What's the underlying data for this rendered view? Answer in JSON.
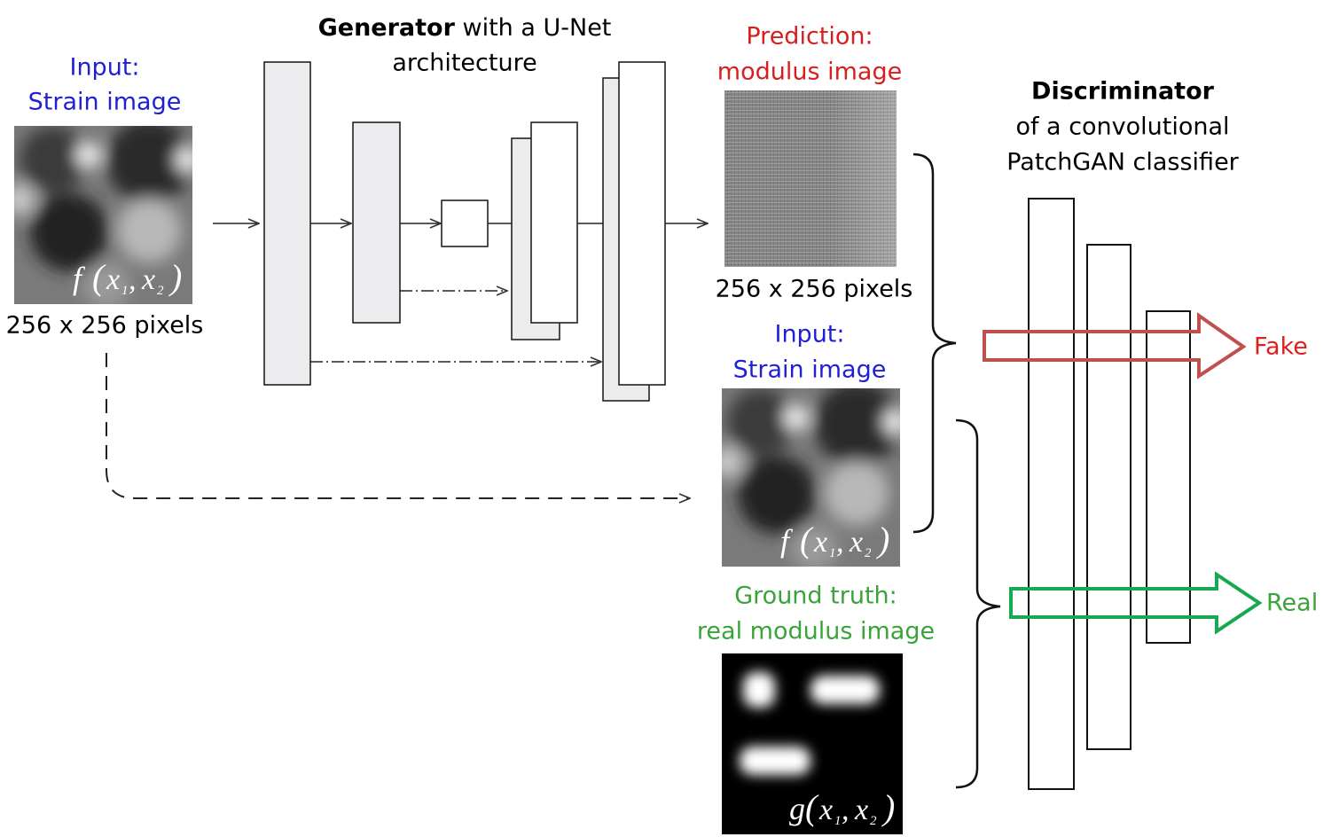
{
  "colors": {
    "input_label": "#1f1fd6",
    "prediction_label": "#d81f1f",
    "ground_truth_label": "#3aa33a",
    "fake_arrow": "#c0504d",
    "real_arrow": "#18a850",
    "fake_label": "#e0201e",
    "real_label": "#3aa33a",
    "block_fill": "#ececee"
  },
  "input": {
    "label_line1": "Input:",
    "label_line2": "Strain image",
    "size_caption": "256 x 256 pixels",
    "formula_f": "f",
    "formula_x1": "x",
    "formula_sub1": "1",
    "formula_x2": "x",
    "formula_sub2": "2"
  },
  "generator": {
    "title_bold": "Generator",
    "title_rest": " with a U-Net",
    "title_line2": "architecture"
  },
  "prediction": {
    "label_line1": "Prediction:",
    "label_line2": "modulus image",
    "size_caption": "256 x 256 pixels"
  },
  "input2": {
    "label_line1": "Input:",
    "label_line2": "Strain image"
  },
  "ground_truth": {
    "label_line1": "Ground truth:",
    "label_line2": "real modulus image",
    "formula_g": "g"
  },
  "discriminator": {
    "title_bold": "Discriminator",
    "title_line2": "of a convolutional",
    "title_line3": "PatchGAN classifier"
  },
  "outputs": {
    "fake_label": "Fake",
    "real_label": "Real"
  }
}
